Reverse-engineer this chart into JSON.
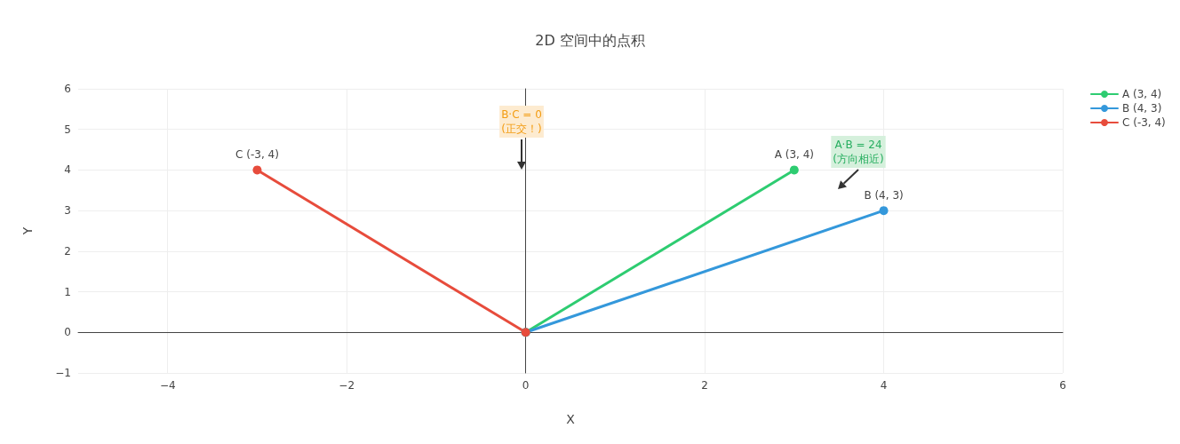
{
  "chart_data": {
    "type": "line",
    "title": "2D 空间中的点积",
    "xlabel": "X",
    "ylabel": "Y",
    "series": [
      {
        "name": "A (3, 4)",
        "color": "#2ecc71",
        "x": [
          0,
          3
        ],
        "values": [
          0,
          4
        ]
      },
      {
        "name": "B (4, 3)",
        "color": "#3498db",
        "x": [
          0,
          4
        ],
        "values": [
          0,
          3
        ]
      },
      {
        "name": "C (-3, 4)",
        "color": "#e74c3c",
        "x": [
          0,
          -3
        ],
        "values": [
          0,
          4
        ]
      }
    ],
    "annotations": [
      "B·C = 0\n(正交！)",
      "A·B = 24\n(方向相近)"
    ],
    "xlim": [
      -5,
      6
    ],
    "xticks": [
      -4,
      -2,
      0,
      2,
      4,
      6
    ],
    "ylim": [
      -1,
      6
    ],
    "yticks": [
      -1,
      0,
      1,
      2,
      3,
      4,
      5,
      6
    ],
    "grid": true,
    "legend": "top right",
    "marker": "circle",
    "line_style": "solid"
  }
}
